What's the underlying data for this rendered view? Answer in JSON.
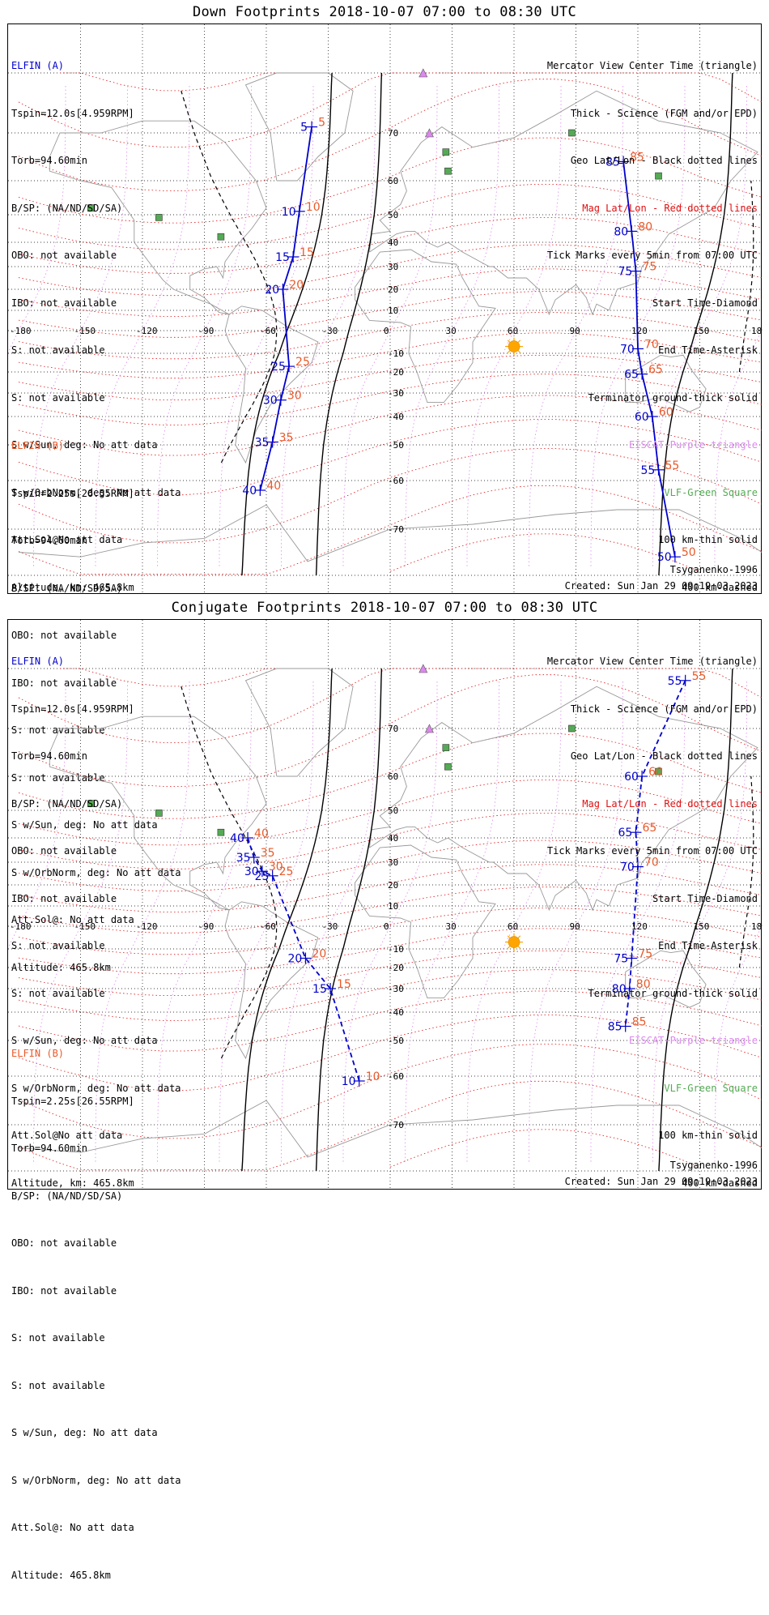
{
  "page": {
    "title_down": "Down Footprints 2018-10-07 07:00 to 08:30 UTC",
    "title_conj": "Conjugate Footprints 2018-10-07 07:00 to 08:30 UTC"
  },
  "colors": {
    "blue": "#0000cc",
    "orange": "#e85a2a",
    "mag_grid": "#e01010",
    "geo_grid": "#000000",
    "violet": "#dd88ee",
    "green": "#55aa55",
    "sun": "#ffa500"
  },
  "info_a": {
    "name": "ELFIN (A)",
    "tspin": "Tspin=12.0s[4.959RPM]",
    "torb": "Torb=94.60min",
    "bsp": "B/SP: (NA/ND/SD/SA)",
    "obo": "OBO: not available",
    "ibo": "IBO: not available",
    "s1": "S: not available",
    "s2": "S: not available",
    "ssun": "S w/Sun, deg: No att data",
    "sorb": "S w/OrbNorm, deg: No att data",
    "attsol": "Att.Sol@No att data",
    "alt": "Altitude, km: 465.8km"
  },
  "info_b": {
    "name": "ELFIN (B)",
    "tspin": "Tspin=2.25s[26.55RPM]",
    "torb": "Torb=94.60min",
    "bsp": "B/SP: (NA/ND/SD/SA)",
    "obo": "OBO: not available",
    "ibo": "IBO: not available",
    "s1": "S: not available",
    "s2": "S: not available",
    "ssun": "S w/Sun, deg: No att data",
    "sorb": "S w/OrbNorm, deg: No att data",
    "attsol": "Att.Sol@: No att data",
    "alt": "Altitude: 465.8km"
  },
  "legend": {
    "view": "Mercator View Center Time (triangle)",
    "thick": "Thick - Science (FGM and/or EPD)",
    "geo": "Geo Lat/Lon - Black dotted lines",
    "mag": "Mag Lat/Lon - Red dotted lines",
    "ticks": "Tick Marks every 5min from 07:00 UTC",
    "start": "Start Time-Diamond",
    "end": "End Time-Asterisk",
    "term": "Terminator ground-thick solid",
    "eiscat": "EISCAT-Purple triangle",
    "vlf": "VLF-Green Square",
    "km100": "100 km-thin solid",
    "km400": "400 km-dashed"
  },
  "footer": {
    "model": "Tsyganenko-1996",
    "created": "Created: Sun Jan 29 09:19:03 2023"
  },
  "map": {
    "lon_labels": [
      "-180",
      "-150",
      "-120",
      "-90",
      "-60",
      "-30",
      "0",
      "30",
      "60",
      "90",
      "120",
      "150",
      "180"
    ],
    "lat_labels": [
      "70",
      "60",
      "50",
      "40",
      "30",
      "20",
      "10",
      "-10",
      "-20",
      "-30",
      "-40",
      "-50",
      "-60",
      "-70"
    ]
  },
  "down": {
    "track_a_ticks": [
      {
        "label": "5",
        "lon": -38,
        "lat": 71
      },
      {
        "label": "10",
        "lon": -44,
        "lat": 51
      },
      {
        "label": "15",
        "lon": -47,
        "lat": 34
      },
      {
        "label": "20",
        "lon": -52,
        "lat": 20
      },
      {
        "label": "25",
        "lon": -49,
        "lat": -17
      },
      {
        "label": "30",
        "lon": -53,
        "lat": -33
      },
      {
        "label": "35",
        "lon": -57,
        "lat": -49
      },
      {
        "label": "40",
        "lon": -63,
        "lat": -62
      }
    ],
    "track_b_ticks": [
      {
        "label": "85",
        "lon": 113,
        "lat": 64
      },
      {
        "label": "80",
        "lon": 117,
        "lat": 44
      },
      {
        "label": "75",
        "lon": 119,
        "lat": 28
      },
      {
        "label": "70",
        "lon": 120,
        "lat": -8
      },
      {
        "label": "65",
        "lon": 122,
        "lat": -21
      },
      {
        "label": "60",
        "lon": 127,
        "lat": -40
      },
      {
        "label": "55",
        "lon": 130,
        "lat": -57
      },
      {
        "label": "50",
        "lon": 138,
        "lat": -76
      }
    ]
  },
  "conj": {
    "track_a_ticks": [
      {
        "label": "40",
        "lon": -69,
        "lat": 40
      },
      {
        "label": "35",
        "lon": -66,
        "lat": 32
      },
      {
        "label": "30",
        "lon": -62,
        "lat": 26
      },
      {
        "label": "25",
        "lon": -57,
        "lat": 24
      },
      {
        "label": "20",
        "lon": -41,
        "lat": -15
      },
      {
        "label": "15",
        "lon": -29,
        "lat": -30
      },
      {
        "label": "10",
        "lon": -15,
        "lat": -61
      }
    ],
    "track_b_ticks": [
      {
        "label": "55",
        "lon": 143,
        "lat": 78
      },
      {
        "label": "60",
        "lon": 122,
        "lat": 60
      },
      {
        "label": "65",
        "lon": 119,
        "lat": 42
      },
      {
        "label": "70",
        "lon": 120,
        "lat": 28
      },
      {
        "label": "75",
        "lon": 117,
        "lat": -15
      },
      {
        "label": "80",
        "lon": 116,
        "lat": -30
      },
      {
        "label": "85",
        "lon": 114,
        "lat": -45
      }
    ]
  }
}
